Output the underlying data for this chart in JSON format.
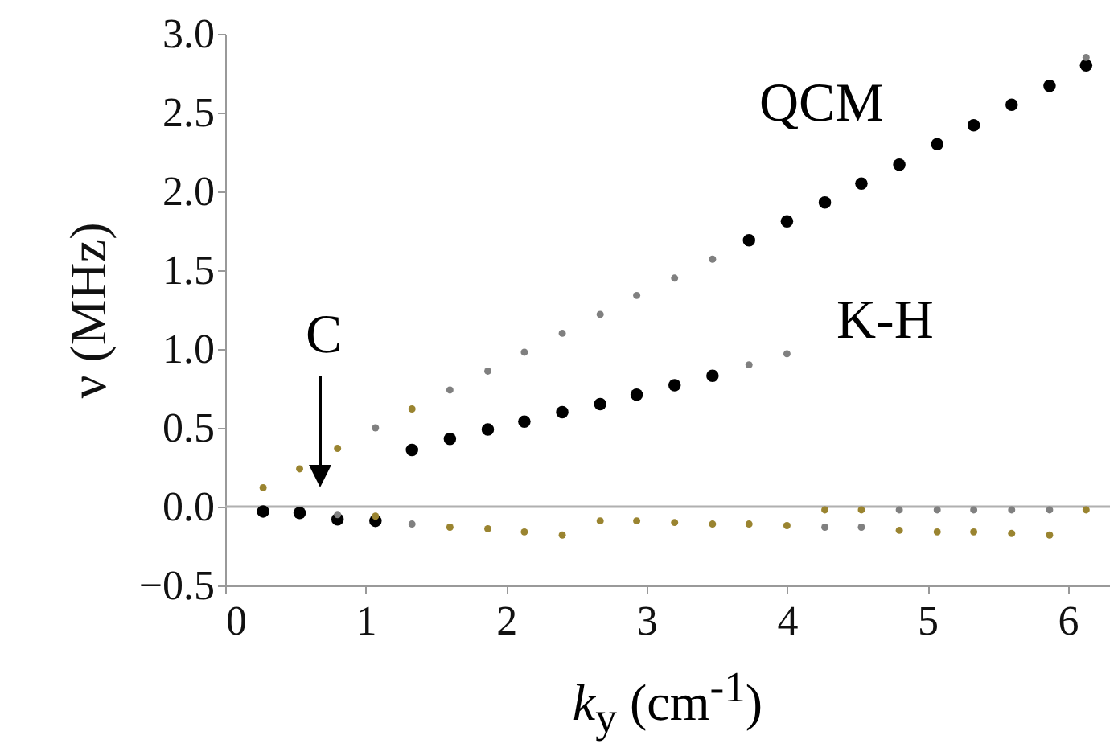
{
  "chart_data": {
    "type": "scatter",
    "xlabel": "k$_{y}$ (cm$^{-1}$)",
    "ylabel": "ν (MHz)",
    "xlim": [
      0,
      6.3
    ],
    "ylim": [
      -0.5,
      3.0
    ],
    "xticks": [
      0,
      1,
      2,
      3,
      4,
      5,
      6
    ],
    "yticks": [
      -0.5,
      {
        "value": 0,
        "label": "0.0"
      },
      0.5,
      {
        "value": 1,
        "label": "1.0"
      },
      1.5,
      {
        "value": 2,
        "label": "2.0"
      },
      2.5,
      {
        "value": 3,
        "label": "3.0"
      }
    ],
    "grid": false,
    "marker": "circle",
    "ref_lines": [
      {
        "axis": "y",
        "value": 0,
        "color": "#b0b0b0"
      }
    ],
    "annotations": [
      "QCM",
      "K-H",
      "C"
    ],
    "series": [
      {
        "color": "#000000",
        "x": [
          3.73,
          4.0,
          4.27,
          4.53,
          4.8,
          5.07,
          5.33,
          5.6,
          5.87,
          6.13,
          1.33,
          1.6,
          1.87,
          2.13,
          2.4,
          2.67,
          2.93,
          3.2,
          3.47,
          0.27,
          0.53,
          0.8,
          1.07
        ],
        "values": [
          1.69,
          1.81,
          1.93,
          2.05,
          2.17,
          2.3,
          2.42,
          2.55,
          2.67,
          2.8,
          0.36,
          0.43,
          0.49,
          0.54,
          0.6,
          0.65,
          0.71,
          0.77,
          0.83,
          -0.03,
          -0.04,
          -0.08,
          -0.09
        ]
      },
      {
        "color": "#808080",
        "x": [
          1.07,
          1.6,
          1.87,
          2.13,
          2.4,
          2.67,
          2.93,
          3.2,
          3.47,
          6.13,
          3.73,
          4.0,
          0.8,
          1.33,
          4.27,
          4.53,
          4.8,
          5.07,
          5.33,
          5.6,
          5.87
        ],
        "values": [
          0.5,
          0.74,
          0.86,
          0.98,
          1.1,
          1.22,
          1.34,
          1.45,
          1.57,
          2.85,
          0.9,
          0.97,
          -0.05,
          -0.11,
          -0.13,
          -0.13,
          -0.02,
          -0.02,
          -0.02,
          -0.02,
          -0.02
        ]
      },
      {
        "color": "#9a8430",
        "x": [
          0.27,
          0.53,
          0.8,
          1.33,
          1.07,
          1.6,
          1.87,
          2.13,
          2.4,
          2.67,
          2.93,
          3.2,
          3.47,
          3.73,
          4.0,
          4.27,
          4.53,
          4.8,
          5.07,
          5.33,
          5.6,
          5.87,
          6.13
        ],
        "values": [
          0.12,
          0.24,
          0.37,
          0.62,
          -0.06,
          -0.13,
          -0.14,
          -0.16,
          -0.18,
          -0.09,
          -0.09,
          -0.1,
          -0.11,
          -0.11,
          -0.12,
          -0.02,
          -0.02,
          -0.15,
          -0.16,
          -0.16,
          -0.17,
          -0.18,
          -0.02
        ]
      }
    ]
  }
}
